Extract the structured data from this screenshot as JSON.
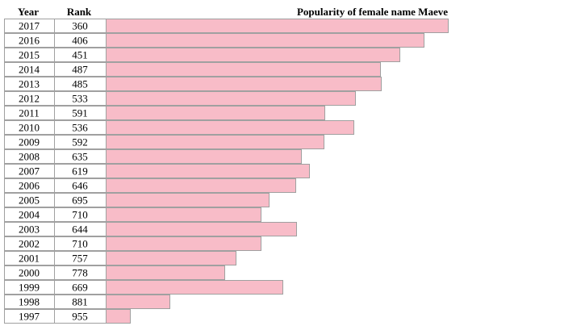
{
  "chart_data": {
    "type": "bar",
    "orientation": "horizontal",
    "title": "Popularity of female name Maeve",
    "columns": [
      "Year",
      "Rank"
    ],
    "categories": [
      "2017",
      "2016",
      "2015",
      "2014",
      "2013",
      "2012",
      "2011",
      "2010",
      "2009",
      "2008",
      "2007",
      "2006",
      "2005",
      "2004",
      "2003",
      "2002",
      "2001",
      "2000",
      "1999",
      "1998",
      "1997"
    ],
    "values": [
      360,
      406,
      451,
      487,
      485,
      533,
      591,
      536,
      592,
      635,
      619,
      646,
      695,
      710,
      644,
      710,
      757,
      778,
      669,
      881,
      955
    ],
    "bar_color": "#f8bcc8"
  }
}
